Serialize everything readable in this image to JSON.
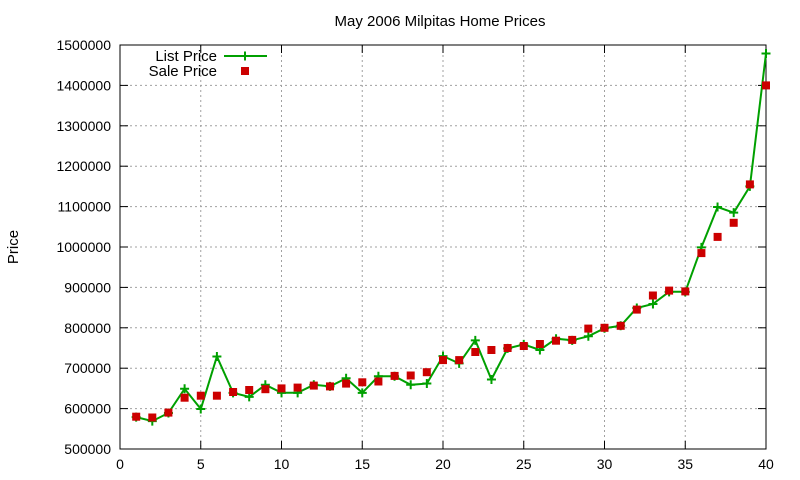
{
  "chart_data": {
    "type": "line",
    "title": "May 2006 Milpitas Home Prices",
    "xlabel": "",
    "ylabel": "Price",
    "xlim": [
      0,
      40
    ],
    "ylim": [
      500000,
      1500000
    ],
    "x_ticks": [
      0,
      5,
      10,
      15,
      20,
      25,
      30,
      35,
      40
    ],
    "x_tick_labels": [
      "0",
      "5",
      "10",
      "15",
      "20",
      "25",
      "30",
      "35",
      "40"
    ],
    "y_ticks": [
      500000,
      600000,
      700000,
      800000,
      900000,
      1000000,
      1100000,
      1200000,
      1300000,
      1400000,
      1500000
    ],
    "y_tick_labels": [
      "500000",
      "600000",
      "700000",
      "800000",
      "900000",
      "1000000",
      "1100000",
      "1200000",
      "1300000",
      "1400000",
      "1500000"
    ],
    "grid": true,
    "legend_position": "top-left",
    "x": [
      1,
      2,
      3,
      4,
      5,
      6,
      7,
      8,
      9,
      10,
      11,
      12,
      13,
      14,
      15,
      16,
      17,
      18,
      19,
      20,
      21,
      22,
      23,
      24,
      25,
      26,
      27,
      28,
      29,
      30,
      31,
      32,
      33,
      34,
      35,
      36,
      37,
      38,
      39,
      40
    ],
    "series": [
      {
        "name": "List Price",
        "style": "line-plus",
        "color": "#00a000",
        "values": [
          579000,
          569000,
          589000,
          649000,
          599000,
          729000,
          639000,
          629000,
          659000,
          639000,
          639000,
          659000,
          655000,
          675000,
          639000,
          680000,
          680000,
          659000,
          662000,
          730000,
          712000,
          769000,
          672000,
          749000,
          759000,
          745000,
          773000,
          769000,
          779000,
          799000,
          805000,
          849000,
          859000,
          889000,
          889000,
          999000,
          1099000,
          1085000,
          1150000,
          1479000
        ]
      },
      {
        "name": "Sale Price",
        "style": "square",
        "color": "#cc0000",
        "values": [
          580000,
          578000,
          590000,
          627000,
          632000,
          632000,
          641000,
          646000,
          648000,
          650000,
          652000,
          657000,
          655000,
          662000,
          665000,
          667000,
          681000,
          682000,
          690000,
          720000,
          720000,
          740000,
          745000,
          750000,
          755000,
          760000,
          768000,
          770000,
          798000,
          800000,
          805000,
          845000,
          880000,
          892000,
          890000,
          985000,
          1025000,
          1060000,
          1155000,
          1400000
        ]
      }
    ]
  }
}
